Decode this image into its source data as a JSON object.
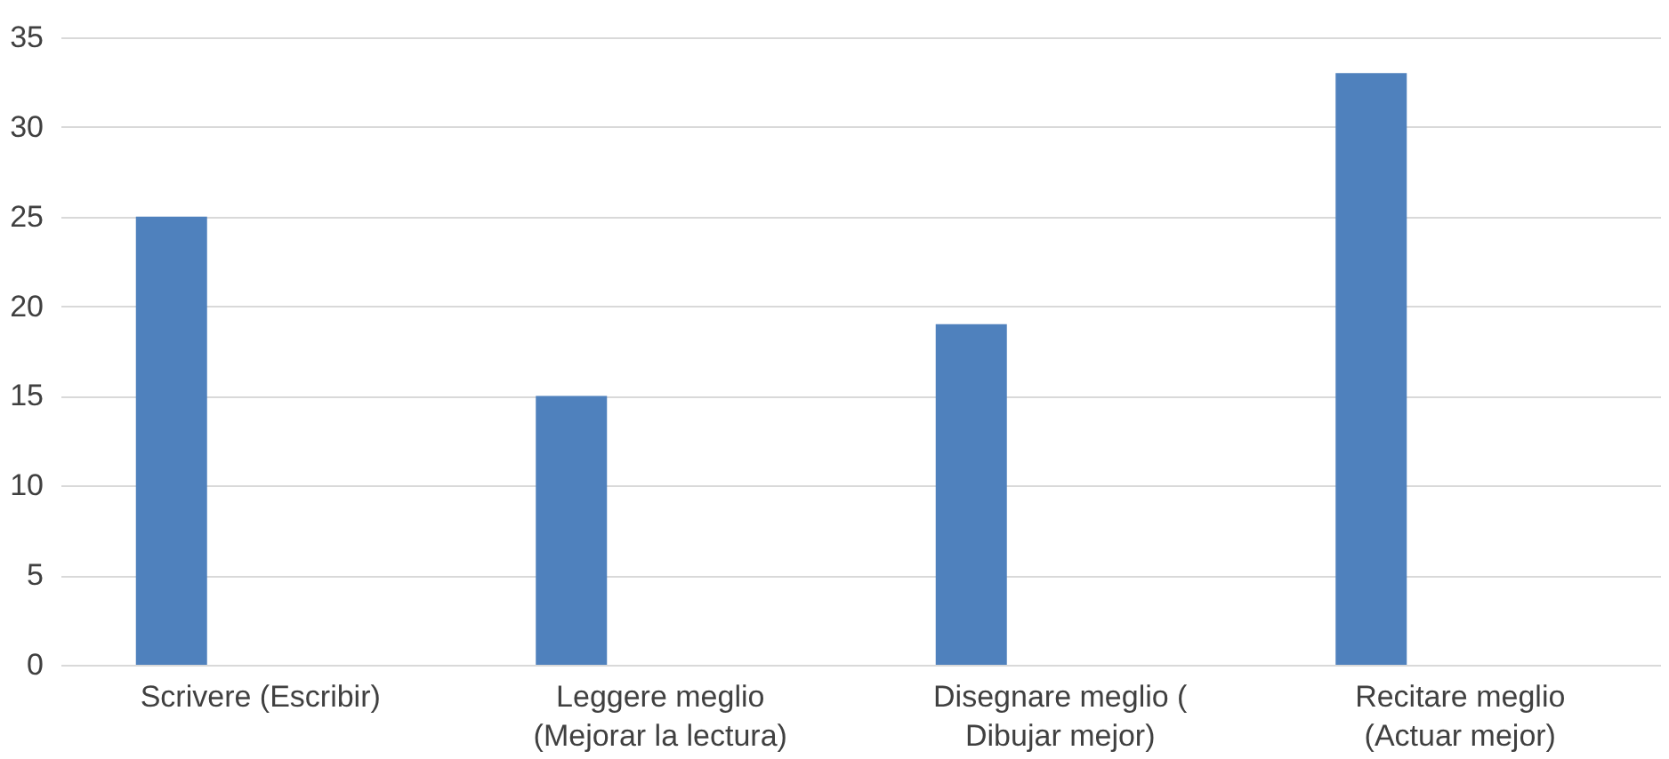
{
  "chart_data": {
    "type": "bar",
    "categories": [
      "Scrivere (Escribir)",
      "Leggere meglio (Mejorar la lectura)",
      "Disegnare meglio ( Dibujar mejor)",
      "Recitare meglio (Actuar mejor)"
    ],
    "values": [
      25,
      15,
      19,
      33
    ],
    "color": "#4f81bd",
    "ylim": [
      0,
      35
    ],
    "yticks": [
      0,
      5,
      10,
      15,
      20,
      25,
      30,
      35
    ],
    "grid": "y"
  }
}
